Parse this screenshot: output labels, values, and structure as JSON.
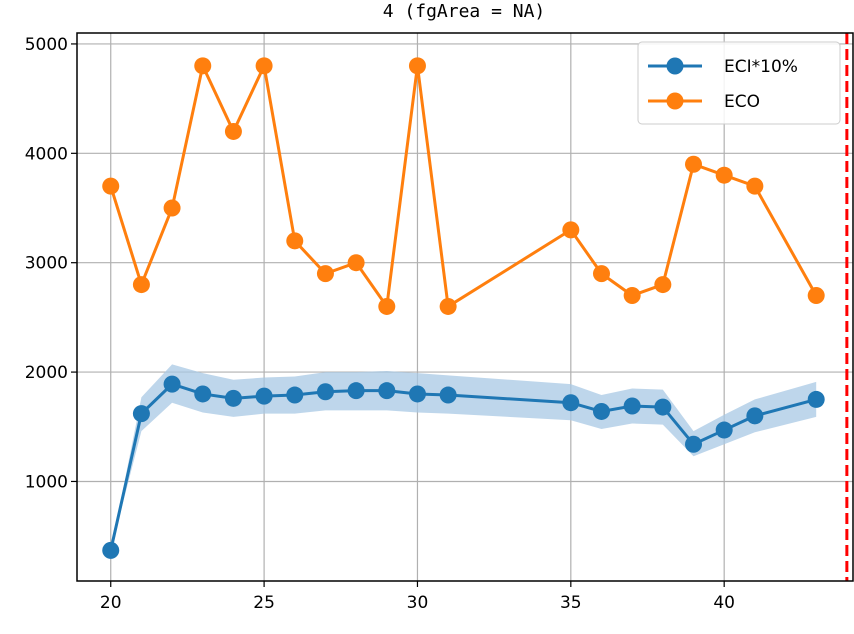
{
  "chart_data": {
    "type": "line",
    "title": "4 (fgArea = NA)",
    "xlabel": "",
    "ylabel": "",
    "xlim": [
      18.9,
      44.2
    ],
    "ylim": [
      90,
      5100
    ],
    "xticks": [
      20,
      25,
      30,
      35,
      40
    ],
    "yticks": [
      1000,
      2000,
      3000,
      4000,
      5000
    ],
    "grid": true,
    "legend_position": "top-right",
    "reference_line": {
      "x": 44,
      "style": "dashed",
      "color": "#ff0000"
    },
    "series": [
      {
        "name": "ECI*10%",
        "color": "#1f77b4",
        "band_color": "#a8c8e4",
        "x": [
          20,
          21,
          22,
          23,
          24,
          25,
          26,
          27,
          28,
          29,
          30,
          31,
          35,
          36,
          37,
          38,
          39,
          40,
          41,
          43
        ],
        "y": [
          370,
          1620,
          1890,
          1800,
          1760,
          1780,
          1790,
          1820,
          1830,
          1830,
          1800,
          1790,
          1720,
          1640,
          1690,
          1680,
          1340,
          1470,
          1600,
          1750
        ],
        "band_lower": [
          370,
          1460,
          1720,
          1630,
          1590,
          1620,
          1620,
          1650,
          1650,
          1650,
          1630,
          1620,
          1560,
          1480,
          1530,
          1520,
          1230,
          1340,
          1450,
          1590
        ],
        "band_upper": [
          370,
          1770,
          2070,
          1990,
          1930,
          1950,
          1960,
          2000,
          2000,
          2010,
          1990,
          1970,
          1890,
          1790,
          1850,
          1840,
          1460,
          1610,
          1750,
          1910
        ]
      },
      {
        "name": "ECO",
        "color": "#ff7f0e",
        "x": [
          20,
          21,
          22,
          23,
          24,
          25,
          26,
          27,
          28,
          29,
          30,
          31,
          35,
          36,
          37,
          38,
          39,
          40,
          41,
          43
        ],
        "y": [
          3700,
          2800,
          3500,
          4800,
          4200,
          4800,
          3200,
          2900,
          3000,
          2600,
          4800,
          2600,
          3300,
          2900,
          2700,
          2800,
          3900,
          3800,
          3700,
          2700
        ]
      }
    ]
  }
}
